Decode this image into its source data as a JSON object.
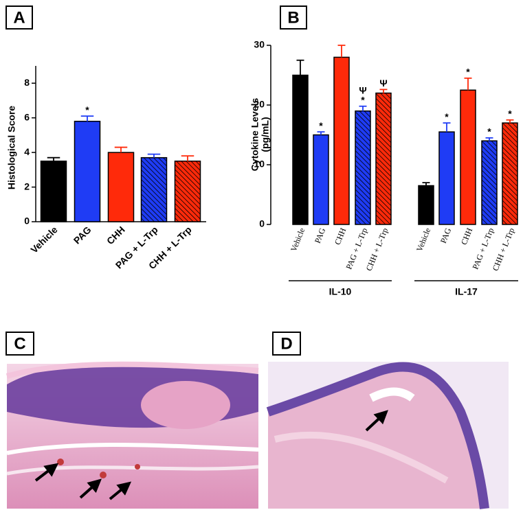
{
  "panel_labels": [
    "A",
    "B",
    "C",
    "D"
  ],
  "chart_data": [
    {
      "type": "bar",
      "y_label": "Histological Score",
      "categories": [
        "Vehicle",
        "PAG",
        "CHH",
        "PAG + L-Trp",
        "CHH + L-Trp"
      ],
      "values": [
        3.5,
        5.8,
        4.0,
        3.7,
        3.5
      ],
      "errors": [
        0.2,
        0.3,
        0.3,
        0.2,
        0.3
      ],
      "colors": [
        "#000000",
        "#1f3cf5",
        "#ff2a0a",
        "#1f3cf5",
        "#ff2a0a"
      ],
      "hatched": [
        false,
        false,
        false,
        true,
        true
      ],
      "annotations": [
        {
          "index": 1,
          "text": "*"
        }
      ],
      "ylim": [
        0,
        9
      ],
      "yticks": [
        0,
        2,
        4,
        6,
        8
      ]
    },
    {
      "type": "grouped_bar",
      "y_label": [
        "Cytokine Levels",
        "(pg/mL)"
      ],
      "colors": [
        "#000000",
        "#1f3cf5",
        "#ff2a0a",
        "#1f3cf5",
        "#ff2a0a"
      ],
      "hatched": [
        false,
        false,
        false,
        true,
        true
      ],
      "ylim": [
        0,
        30
      ],
      "yticks": [
        0,
        10,
        20,
        30
      ],
      "groups": [
        {
          "name": "IL-10",
          "categories": [
            "Vehicle",
            "PAG",
            "CHH",
            "PAG + L-Trp",
            "CHH + L-Trp"
          ],
          "values": [
            25,
            15,
            28,
            19,
            22
          ],
          "errors": [
            2.5,
            0.5,
            2,
            0.8,
            0.6
          ],
          "annotations": [
            {
              "index": 1,
              "text": "*"
            },
            {
              "index": 3,
              "text": "*"
            },
            {
              "index": 3,
              "text": "Ψ"
            },
            {
              "index": 4,
              "text": "Ψ"
            }
          ]
        },
        {
          "name": "IL-17",
          "categories": [
            "Vehicle",
            "PAG",
            "CHH",
            "PAG + L-Trp",
            "CHH + L-Trp"
          ],
          "values": [
            6.5,
            15.5,
            22.5,
            14,
            17
          ],
          "errors": [
            0.5,
            1.5,
            2,
            0.5,
            0.5
          ],
          "annotations": [
            {
              "index": 1,
              "text": "*"
            },
            {
              "index": 2,
              "text": "*"
            },
            {
              "index": 3,
              "text": "*"
            },
            {
              "index": 4,
              "text": "*"
            }
          ]
        }
      ]
    }
  ]
}
